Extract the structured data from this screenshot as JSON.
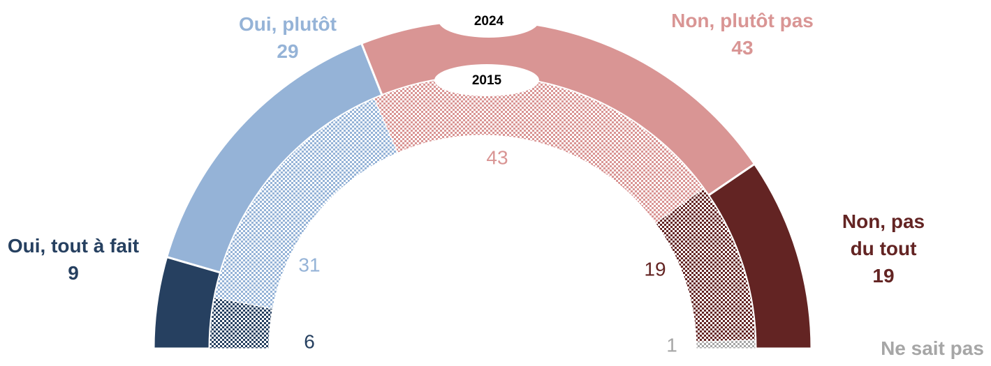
{
  "chart_data": {
    "type": "donut",
    "categories": [
      "Oui, tout à fait",
      "Oui, plutôt",
      "Non, plutôt pas",
      "Non, pas du tout",
      "Ne sait pas"
    ],
    "colors": [
      "#264060",
      "#95b3d7",
      "#d99594",
      "#632423",
      "#a6a6a6"
    ],
    "series": [
      {
        "name": "2024",
        "values": [
          9,
          29,
          43,
          19,
          0
        ]
      },
      {
        "name": "2015",
        "values": [
          6,
          31,
          43,
          19,
          1
        ]
      }
    ]
  }
}
